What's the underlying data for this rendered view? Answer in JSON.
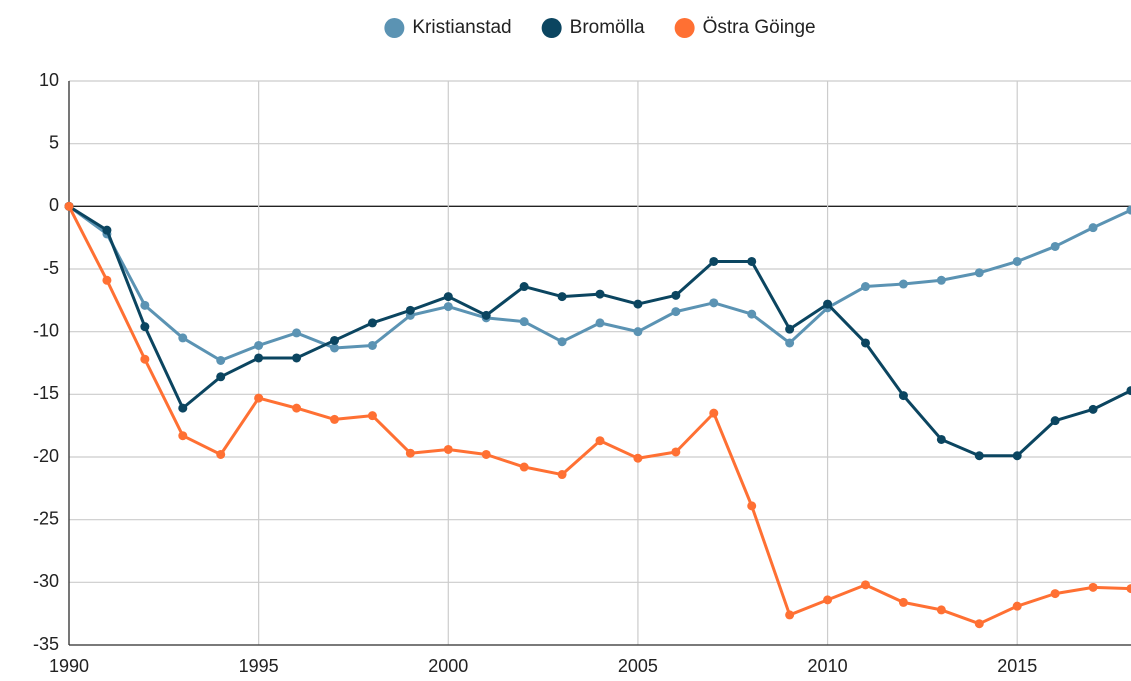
{
  "chart_data": {
    "type": "line",
    "x": [
      1990,
      1991,
      1992,
      1993,
      1994,
      1995,
      1996,
      1997,
      1998,
      1999,
      2000,
      2001,
      2002,
      2003,
      2004,
      2005,
      2006,
      2007,
      2008,
      2009,
      2010,
      2011,
      2012,
      2013,
      2014,
      2015,
      2016,
      2017,
      2018
    ],
    "series": [
      {
        "name": "Kristianstad",
        "color": "#5b93b3",
        "values": [
          0,
          -2.2,
          -7.9,
          -10.5,
          -12.3,
          -11.1,
          -10.1,
          -11.3,
          -11.1,
          -8.7,
          -8.0,
          -8.9,
          -9.2,
          -10.8,
          -9.3,
          -10.0,
          -8.4,
          -7.7,
          -8.6,
          -10.9,
          -8.1,
          -6.4,
          -6.2,
          -5.9,
          -5.3,
          -4.4,
          -3.2,
          -1.7,
          -0.3
        ]
      },
      {
        "name": "Bromölla",
        "color": "#0b4560",
        "values": [
          0,
          -1.9,
          -9.6,
          -16.1,
          -13.6,
          -12.1,
          -12.1,
          -10.7,
          -9.3,
          -8.3,
          -7.2,
          -8.7,
          -6.4,
          -7.2,
          -7.0,
          -7.8,
          -7.1,
          -4.4,
          -4.4,
          -9.8,
          -7.8,
          -10.9,
          -15.1,
          -18.6,
          -19.9,
          -19.9,
          -17.1,
          -16.2,
          -14.7
        ]
      },
      {
        "name": "Östra Göinge",
        "color": "#ff7033",
        "values": [
          0,
          -5.9,
          -12.2,
          -18.3,
          -19.8,
          -15.3,
          -16.1,
          -17.0,
          -16.7,
          -19.7,
          -19.4,
          -19.8,
          -20.8,
          -21.4,
          -18.7,
          -20.1,
          -19.6,
          -16.5,
          -23.9,
          -32.6,
          -31.4,
          -30.2,
          -31.6,
          -32.2,
          -33.3,
          -31.9,
          -30.9,
          -30.4,
          -30.5
        ]
      }
    ],
    "xlim": [
      1990,
      2018
    ],
    "xticks": [
      1990,
      1995,
      2000,
      2005,
      2010,
      2015
    ],
    "ylim": [
      -35,
      10
    ],
    "yticks": [
      10,
      5,
      0,
      -5,
      -10,
      -15,
      -20,
      -25,
      -30,
      -35
    ],
    "grid": true,
    "legend": "top"
  }
}
